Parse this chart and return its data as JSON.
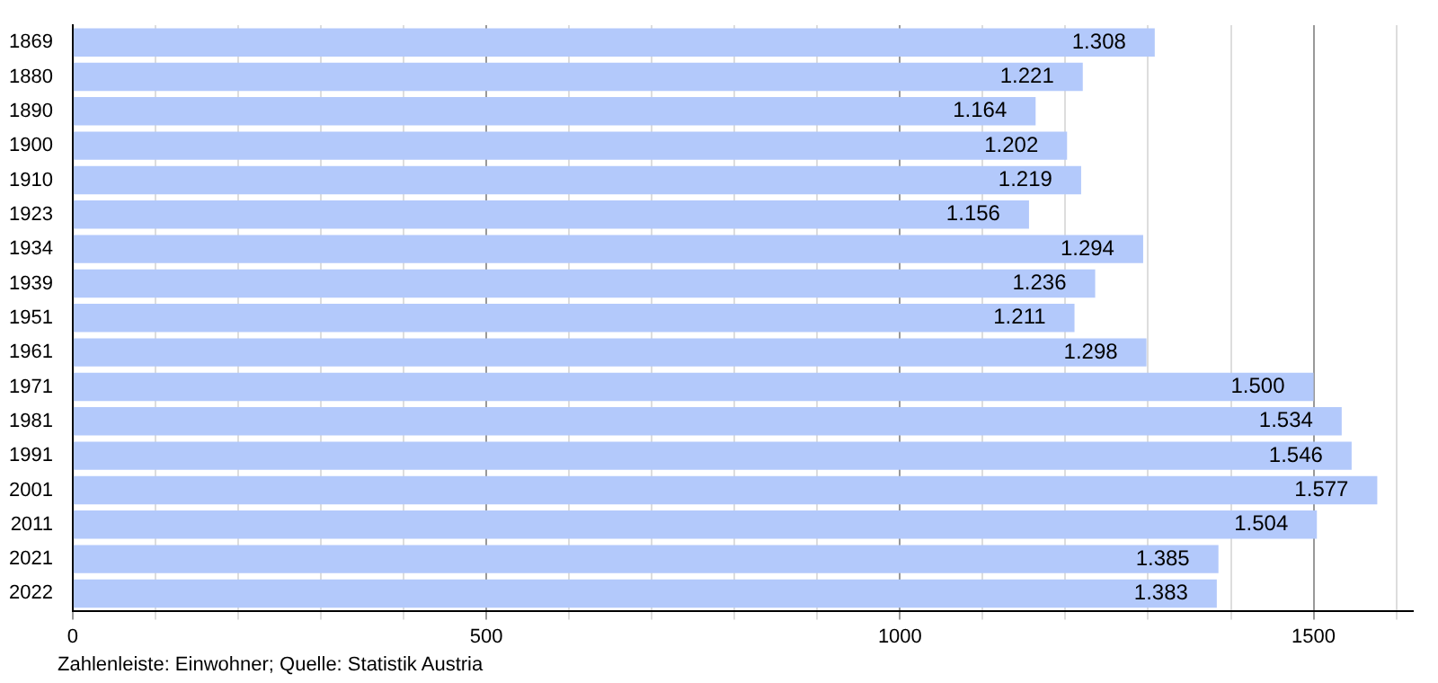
{
  "chart_data": {
    "type": "bar",
    "orientation": "horizontal",
    "categories": [
      "1869",
      "1880",
      "1890",
      "1900",
      "1910",
      "1923",
      "1934",
      "1939",
      "1951",
      "1961",
      "1971",
      "1981",
      "1991",
      "2001",
      "2011",
      "2021",
      "2022"
    ],
    "values": [
      1308,
      1221,
      1164,
      1202,
      1219,
      1156,
      1294,
      1236,
      1211,
      1298,
      1500,
      1534,
      1546,
      1577,
      1504,
      1385,
      1383
    ],
    "value_labels": [
      "1.308",
      "1.221",
      "1.164",
      "1.202",
      "1.219",
      "1.156",
      "1.294",
      "1.236",
      "1.211",
      "1.298",
      "1.500",
      "1.534",
      "1.546",
      "1.577",
      "1.504",
      "1.385",
      "1.383"
    ],
    "color": "#b3c9fb",
    "xlim": [
      0,
      1620
    ],
    "xticks": [
      0,
      {
        "value": 100,
        "label": null
      },
      {
        "value": 200,
        "label": null
      },
      {
        "value": 300,
        "label": null
      },
      {
        "value": 400,
        "label": null
      },
      500,
      {
        "value": 600,
        "label": null
      },
      {
        "value": 700,
        "label": null
      },
      {
        "value": 800,
        "label": null
      },
      {
        "value": 900,
        "label": null
      },
      1000,
      {
        "value": 1100,
        "label": null
      },
      {
        "value": 1200,
        "label": null
      },
      {
        "value": 1300,
        "label": null
      },
      {
        "value": 1400,
        "label": null
      },
      1500,
      {
        "value": 1600,
        "label": null
      }
    ],
    "grid": "x",
    "legend": false,
    "annotations": [
      "Zahlenleiste: Einwohner; Quelle: Statistik Austria"
    ]
  }
}
